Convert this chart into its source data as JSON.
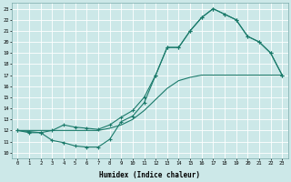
{
  "xlabel": "Humidex (Indice chaleur)",
  "background_color": "#cce8e8",
  "grid_color": "#b0d4d4",
  "line_color": "#1a7a6a",
  "xlim": [
    -0.5,
    23.5
  ],
  "ylim": [
    9.5,
    23.5
  ],
  "line1_x": [
    0,
    1,
    2,
    3,
    4,
    5,
    6,
    7,
    8,
    9,
    10,
    11,
    12,
    13,
    14,
    15,
    16,
    17,
    18,
    19,
    20,
    21,
    22,
    23
  ],
  "line1_y": [
    12.0,
    11.8,
    11.8,
    11.1,
    10.9,
    10.6,
    10.5,
    10.5,
    11.2,
    12.8,
    13.3,
    14.5,
    17.0,
    19.5,
    19.5,
    21.0,
    22.2,
    23.0,
    22.5,
    22.0,
    20.5,
    20.0,
    19.0,
    17.0
  ],
  "line2_x": [
    0,
    1,
    2,
    3,
    4,
    5,
    6,
    7,
    8,
    9,
    10,
    11,
    12,
    13,
    14,
    15,
    16,
    17,
    18,
    19,
    20,
    21,
    22,
    23
  ],
  "line2_y": [
    12.0,
    11.9,
    11.8,
    12.0,
    12.5,
    12.3,
    12.2,
    12.1,
    12.5,
    13.2,
    13.8,
    15.0,
    17.0,
    19.5,
    19.5,
    21.0,
    22.2,
    23.0,
    22.5,
    22.0,
    20.5,
    20.0,
    19.0,
    17.0
  ],
  "line3_x": [
    0,
    1,
    2,
    3,
    4,
    5,
    6,
    7,
    8,
    9,
    10,
    11,
    12,
    13,
    14,
    15,
    16,
    17,
    18,
    19,
    20,
    21,
    22,
    23
  ],
  "line3_y": [
    12.0,
    12.0,
    12.0,
    12.0,
    12.0,
    12.0,
    12.0,
    12.0,
    12.2,
    12.5,
    13.0,
    13.8,
    14.8,
    15.8,
    16.5,
    16.8,
    17.0,
    17.0,
    17.0,
    17.0,
    17.0,
    17.0,
    17.0,
    17.0
  ]
}
